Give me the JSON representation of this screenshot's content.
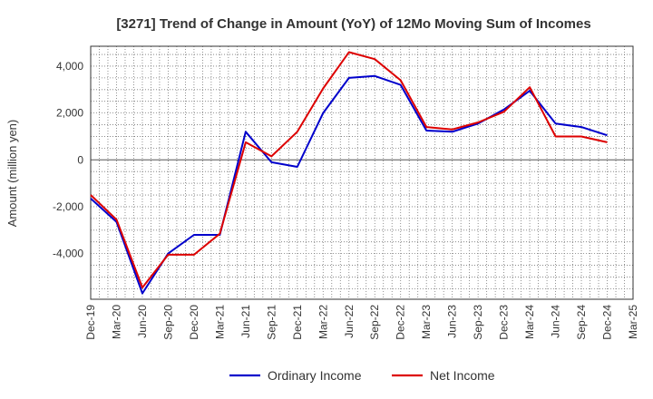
{
  "chart_data": {
    "type": "line",
    "title": "[3271]  Trend of Change in Amount (YoY) of 12Mo Moving Sum of Incomes",
    "xlabel": "",
    "ylabel": "Amount (million yen)",
    "categories": [
      "Dec-19",
      "Mar-20",
      "Jun-20",
      "Sep-20",
      "Dec-20",
      "Mar-21",
      "Jun-21",
      "Sep-21",
      "Dec-21",
      "Mar-22",
      "Jun-22",
      "Sep-22",
      "Dec-22",
      "Mar-23",
      "Jun-23",
      "Sep-23",
      "Dec-23",
      "Mar-24",
      "Jun-24",
      "Sep-24",
      "Dec-24",
      "Mar-25"
    ],
    "y_ticks": [
      -4000,
      -2000,
      0,
      2000,
      4000
    ],
    "y_tick_labels": [
      "-4,000",
      "-2,000",
      "0",
      "2,000",
      "4,000"
    ],
    "ylim": [
      -5950,
      4850
    ],
    "grid": true,
    "legend_position": "bottom",
    "series": [
      {
        "name": "Ordinary Income",
        "color": "#0000cc",
        "values": [
          -1650,
          -2650,
          -5700,
          -4000,
          -3200,
          -3200,
          1200,
          -100,
          -300,
          2000,
          3500,
          3580,
          3200,
          1250,
          1200,
          1550,
          2150,
          2950,
          1550,
          1400,
          1050,
          null
        ]
      },
      {
        "name": "Net Income",
        "color": "#dd0000",
        "values": [
          -1500,
          -2550,
          -5450,
          -4050,
          -4050,
          -3150,
          750,
          150,
          1200,
          3050,
          4600,
          4300,
          3400,
          1400,
          1300,
          1600,
          2050,
          3100,
          1000,
          1000,
          750,
          null
        ]
      }
    ]
  }
}
